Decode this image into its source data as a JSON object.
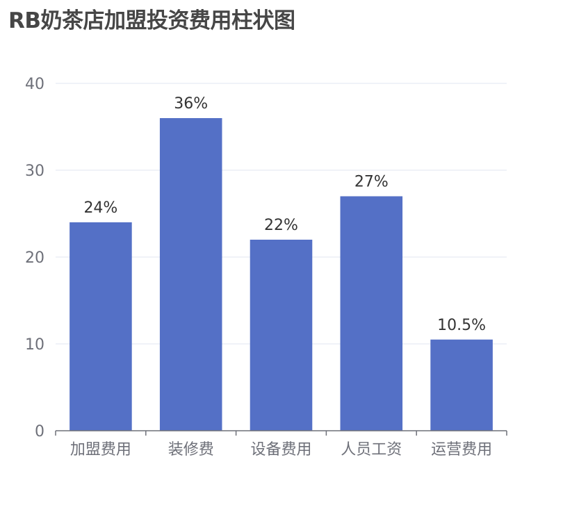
{
  "chart_data": {
    "type": "bar",
    "title": "RB奶茶店加盟投资费用柱状图",
    "categories": [
      "加盟费用",
      "装修费",
      "设备费用",
      "人员工资",
      "运营费用"
    ],
    "values": [
      24,
      36,
      22,
      27,
      10.5
    ],
    "data_labels": [
      "24%",
      "36%",
      "22%",
      "27%",
      "10.5%"
    ],
    "ylim": [
      0,
      40
    ],
    "yticks": [
      0,
      10,
      20,
      30,
      40
    ],
    "grid": true,
    "colors": {
      "bar": "#5470c6",
      "grid": "#e0e6f1",
      "axis": "#6e7079"
    }
  }
}
